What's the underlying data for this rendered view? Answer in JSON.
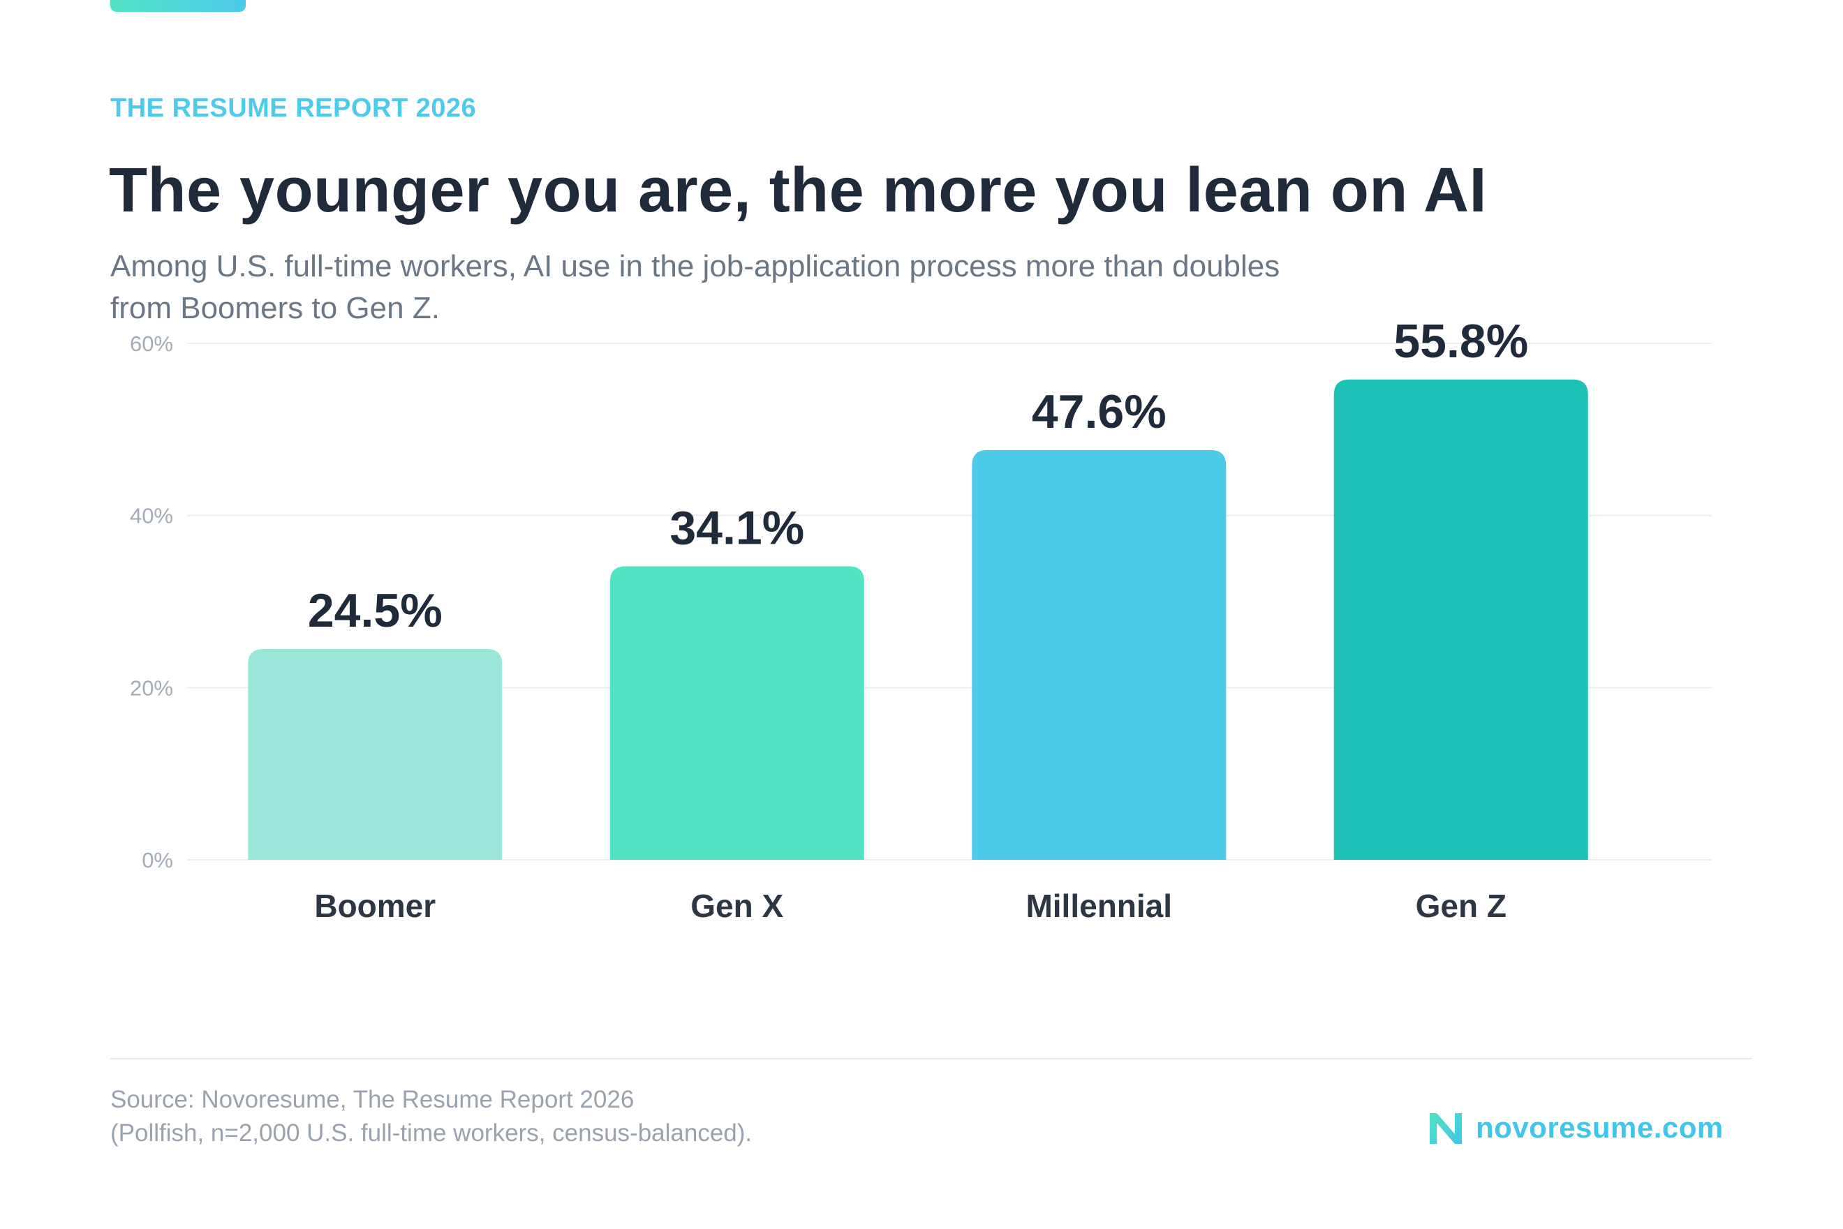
{
  "header": {
    "eyebrow": "THE RESUME REPORT 2026",
    "title": "The younger you are, the more you lean on AI",
    "subtitle": "Among U.S. full-time workers, AI use in the job-application process more than doubles from Boomers to Gen Z."
  },
  "chart_data": {
    "type": "bar",
    "categories": [
      "Boomer",
      "Gen X",
      "Millennial",
      "Gen Z"
    ],
    "values": [
      24.5,
      34.1,
      47.6,
      55.8
    ],
    "value_labels": [
      "24.5%",
      "34.1%",
      "47.6%",
      "55.8%"
    ],
    "bar_colors": [
      "#9be6d8",
      "#52e3c4",
      "#4dcbeb",
      "#1dc1b5"
    ],
    "ylim": [
      0,
      60
    ],
    "yticks": [
      0,
      20,
      40,
      60
    ],
    "ytick_labels": [
      "0%",
      "20%",
      "40%",
      "60%"
    ],
    "grid": true,
    "legend": "none"
  },
  "footer": {
    "source_line1": "Source: Novoresume, The Resume Report 2026",
    "source_line2": "(Pollfish, n=2,000 U.S. full-time workers, census-balanced).",
    "logo_text": "novoresume.com"
  },
  "colors": {
    "accent_teal": "#52e3c4",
    "accent_blue": "#4dcbeb",
    "title_text": "#1f2a3a"
  },
  "icons": {
    "logo": "novoresume-n-logo-icon"
  }
}
